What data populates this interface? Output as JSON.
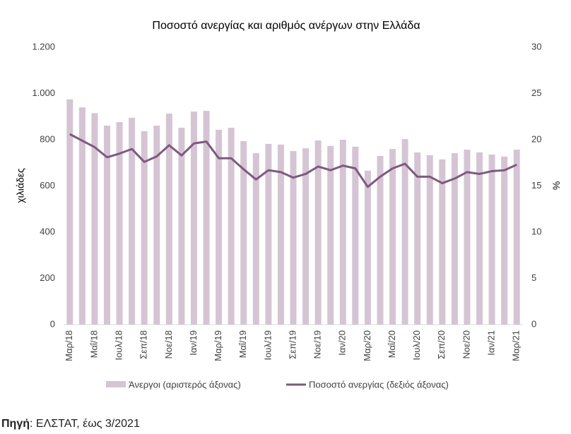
{
  "chart_data": {
    "type": "bar-line",
    "title": "Ποσοστό ανεργίας και αριθμός ανέργων στην Ελλάδα",
    "y_label": "χιλιάδες",
    "y2_label": "%",
    "categories": [
      "Μαρ/18",
      null,
      "Μαΐ/18",
      null,
      "Ιουλ/18",
      null,
      "Σεπ/18",
      null,
      "Νοε/18",
      null,
      "Ιαν/19",
      null,
      "Μαρ/19",
      null,
      "Μαΐ/19",
      null,
      "Ιουλ/19",
      null,
      "Σεπ/19",
      null,
      "Νοε/19",
      null,
      "Ιαν/20",
      null,
      "Μαρ/20",
      null,
      "Μαΐ/20",
      null,
      "Ιουλ/20",
      null,
      "Σεπ/20",
      null,
      "Νοε/20",
      null,
      "Ιαν/21",
      null,
      "Μαρ/21"
    ],
    "series": [
      {
        "name": "Άνεργοι (αριστερός άξονας)",
        "type": "bar",
        "color": "#d5c5d4",
        "values": [
          975,
          940,
          915,
          861,
          876,
          895,
          837,
          861,
          913,
          852,
          922,
          925,
          843,
          852,
          794,
          742,
          782,
          779,
          751,
          763,
          797,
          773,
          800,
          770,
          666,
          730,
          760,
          803,
          745,
          733,
          715,
          742,
          757,
          745,
          736,
          727,
          757
        ]
      },
      {
        "name": "Ποσοστό ανεργίας (δεξιός άξονας)",
        "type": "line",
        "axis": "y2",
        "color": "#7d5a7e",
        "values": [
          20.6,
          19.9,
          19.2,
          18.1,
          18.5,
          19.0,
          17.6,
          18.2,
          19.4,
          18.3,
          19.6,
          19.8,
          18.0,
          18.0,
          16.8,
          15.7,
          16.7,
          16.5,
          15.9,
          16.3,
          17.1,
          16.7,
          17.2,
          16.9,
          14.9,
          16.0,
          16.9,
          17.4,
          16.0,
          16.0,
          15.3,
          15.8,
          16.5,
          16.3,
          16.6,
          16.7,
          17.3
        ]
      }
    ],
    "ylim": [
      0,
      1200
    ],
    "yticks": [
      0,
      200,
      400,
      600,
      800,
      {
        "value": 1000,
        "label": "1.000"
      },
      {
        "value": 1200,
        "label": "1.200"
      }
    ],
    "y2lim": [
      0,
      30
    ],
    "y2ticks": [
      0,
      5,
      10,
      15,
      20,
      25,
      30
    ],
    "legend": "bottom"
  },
  "source": {
    "label": "Πηγή",
    "text": ": ΕΛΣΤΑΤ, έως 3/2021"
  }
}
